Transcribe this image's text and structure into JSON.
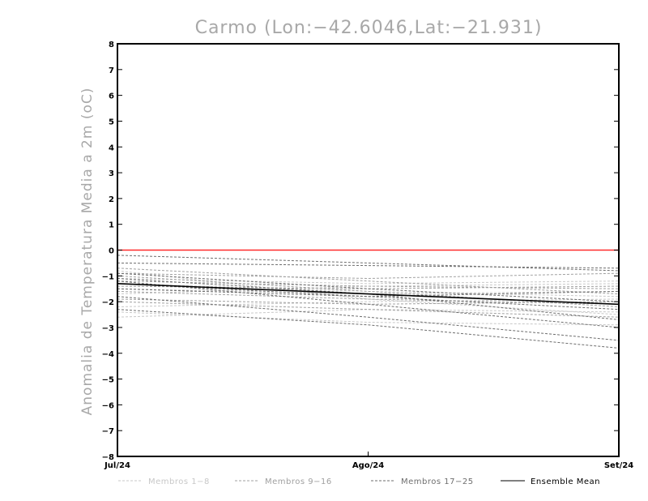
{
  "chart_data": {
    "type": "line",
    "title": "Carmo (Lon:-42.6046,Lat:-21.931)",
    "ylabel": "Anomalia de Temperatura Media a 2m (oC)",
    "xlabel": "",
    "categories": [
      "Jul/24",
      "Ago/24",
      "Set/24"
    ],
    "ylim": [
      -8,
      8
    ],
    "yticks": [
      8,
      7,
      6,
      5,
      4,
      3,
      2,
      1,
      0,
      -1,
      -2,
      -3,
      -4,
      -5,
      -6,
      -7,
      -8
    ],
    "grid": false,
    "legend_position": "bottom",
    "reference_line": {
      "value": 0,
      "color": "#ff2a2a"
    },
    "groups": [
      {
        "name": "Membros 1-8",
        "color": "#c8c8c8",
        "style": "dashed",
        "series": [
          [
            -2.6,
            -2.3,
            -2.4
          ],
          [
            -2.4,
            -2.8,
            -2.9
          ],
          [
            -1.1,
            -1.3,
            -1.2
          ],
          [
            -1.5,
            -1.7,
            -1.6
          ],
          [
            -1.7,
            -1.4,
            -1.3
          ],
          [
            -2.2,
            -2.0,
            -1.9
          ],
          [
            -0.8,
            -1.9,
            -2.5
          ],
          [
            -1.3,
            -1.6,
            -1.8
          ]
        ]
      },
      {
        "name": "Membros 9-16",
        "color": "#a0a0a0",
        "style": "dashed",
        "series": [
          [
            -1.0,
            -1.6,
            -2.2
          ],
          [
            -1.4,
            -1.5,
            -1.4
          ],
          [
            -0.9,
            -1.1,
            -0.9
          ],
          [
            -2.0,
            -2.3,
            -2.6
          ],
          [
            -1.6,
            -1.9,
            -2.1
          ],
          [
            -1.2,
            -1.4,
            -1.5
          ],
          [
            -0.7,
            -1.2,
            -1.7
          ],
          [
            -1.9,
            -2.1,
            -2.0
          ]
        ]
      },
      {
        "name": "Membros 17-25",
        "color": "#6e6e6e",
        "style": "dashed",
        "series": [
          [
            -0.2,
            -0.5,
            -0.8
          ],
          [
            -0.5,
            -0.6,
            -0.7
          ],
          [
            -1.3,
            -1.8,
            -2.3
          ],
          [
            -1.8,
            -2.6,
            -3.5
          ],
          [
            -2.3,
            -2.9,
            -3.8
          ],
          [
            -1.2,
            -2.1,
            -3.0
          ],
          [
            -0.9,
            -1.5,
            -2.0
          ],
          [
            -1.5,
            -1.8,
            -1.6
          ],
          [
            -1.1,
            -1.7,
            -2.7
          ]
        ]
      }
    ],
    "series": [
      {
        "name": "Ensemble Mean",
        "color": "#000000",
        "style": "solid",
        "values": [
          -1.3,
          -1.7,
          -2.1
        ]
      }
    ]
  }
}
